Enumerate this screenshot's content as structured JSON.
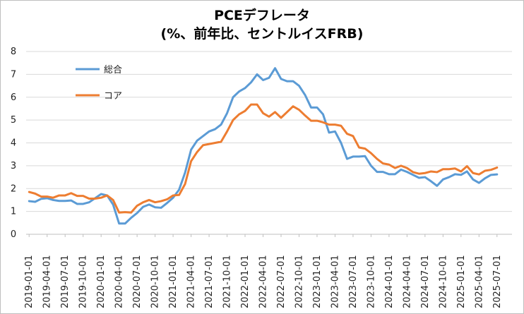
{
  "chart_data": {
    "type": "line",
    "title_line1": "PCEデフレータ",
    "title_line2": "(%、前年比、セントルイスFRB)",
    "ylim": [
      0,
      8
    ],
    "yticks": [
      0,
      1,
      2,
      3,
      4,
      5,
      6,
      7,
      8
    ],
    "xtick_labels": [
      "2019-01-01",
      "2019-04-01",
      "2019-07-01",
      "2019-10-01",
      "2020-01-01",
      "2020-04-01",
      "2020-07-01",
      "2020-10-01",
      "2021-01-01",
      "2021-04-01",
      "2021-07-01",
      "2021-10-01",
      "2022-01-01",
      "2022-04-01",
      "2022-07-01",
      "2022-10-01",
      "2023-01-01",
      "2023-04-01",
      "2023-07-01",
      "2023-10-01",
      "2024-01-01",
      "2024-04-01",
      "2024-07-01",
      "2024-10-01",
      "2025-01-01",
      "2025-04-01",
      "2025-07-01"
    ],
    "grid": true,
    "legend_position": "top-left",
    "series": [
      {
        "name": "総合",
        "color": "#5B9BD5",
        "values": [
          1.45,
          1.42,
          1.55,
          1.58,
          1.5,
          1.46,
          1.46,
          1.48,
          1.33,
          1.33,
          1.4,
          1.58,
          1.76,
          1.7,
          1.3,
          0.47,
          0.47,
          0.72,
          0.93,
          1.2,
          1.3,
          1.18,
          1.16,
          1.37,
          1.6,
          1.95,
          2.7,
          3.7,
          4.1,
          4.3,
          4.5,
          4.6,
          4.8,
          5.3,
          6.0,
          6.25,
          6.4,
          6.65,
          7.0,
          6.75,
          6.85,
          7.27,
          6.8,
          6.7,
          6.7,
          6.5,
          6.1,
          5.55,
          5.55,
          5.25,
          4.45,
          4.5,
          4.0,
          3.3,
          3.4,
          3.4,
          3.42,
          3.0,
          2.73,
          2.73,
          2.63,
          2.63,
          2.83,
          2.73,
          2.6,
          2.47,
          2.5,
          2.32,
          2.12,
          2.4,
          2.5,
          2.63,
          2.6,
          2.75,
          2.4,
          2.25,
          2.45,
          2.6,
          2.62
        ]
      },
      {
        "name": "コア",
        "color": "#ED7D31",
        "values": [
          1.85,
          1.78,
          1.65,
          1.65,
          1.6,
          1.7,
          1.7,
          1.8,
          1.68,
          1.68,
          1.56,
          1.56,
          1.6,
          1.7,
          1.5,
          0.95,
          0.97,
          0.95,
          1.25,
          1.4,
          1.5,
          1.4,
          1.45,
          1.53,
          1.7,
          1.72,
          2.2,
          3.2,
          3.6,
          3.9,
          3.95,
          4.0,
          4.05,
          4.5,
          5.0,
          5.25,
          5.4,
          5.68,
          5.68,
          5.3,
          5.15,
          5.35,
          5.1,
          5.35,
          5.6,
          5.45,
          5.2,
          4.97,
          4.97,
          4.9,
          4.8,
          4.8,
          4.75,
          4.4,
          4.3,
          3.8,
          3.75,
          3.55,
          3.3,
          3.1,
          3.05,
          2.9,
          3.0,
          2.9,
          2.72,
          2.65,
          2.68,
          2.75,
          2.72,
          2.85,
          2.85,
          2.88,
          2.75,
          2.98,
          2.68,
          2.62,
          2.78,
          2.82,
          2.92
        ]
      }
    ]
  }
}
